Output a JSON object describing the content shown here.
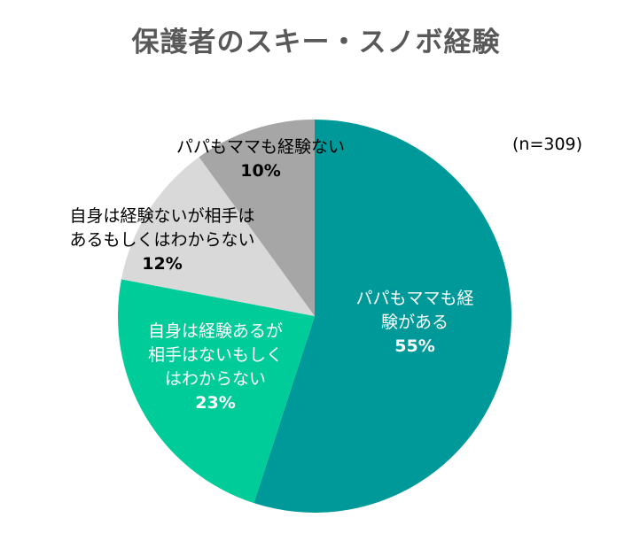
{
  "chart_data": {
    "type": "pie",
    "title": "保護者のスキー・スノボ経験",
    "note": "(n=309)",
    "slices": [
      {
        "label_lines": [
          "パパもママも経",
          "験がある"
        ],
        "percent_label": "55%",
        "value": 55,
        "color": "#009999",
        "text_color": "#ffffff"
      },
      {
        "label_lines": [
          "自身は経験あるが",
          "相手はないもしく",
          "はわからない"
        ],
        "percent_label": "23%",
        "value": 23,
        "color": "#00cc99",
        "text_color": "#ffffff"
      },
      {
        "label_lines": [
          "自身は経験ないが相手は",
          "あるもしくはわからない"
        ],
        "percent_label": "12%",
        "value": 12,
        "color": "#d9d9d9",
        "text_color": "#000000"
      },
      {
        "label_lines": [
          "パパもママも経験ない"
        ],
        "percent_label": "10%",
        "value": 10,
        "color": "#a6a6a6",
        "text_color": "#000000"
      }
    ]
  }
}
